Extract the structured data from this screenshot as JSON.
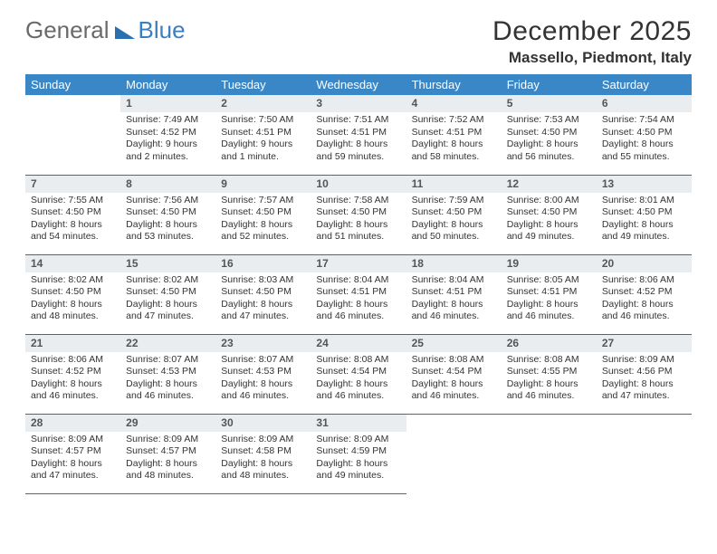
{
  "logo": {
    "text1": "General",
    "text2": "Blue"
  },
  "title": "December 2025",
  "location": "Massello, Piedmont, Italy",
  "colors": {
    "header_bg": "#3a87c7",
    "header_text": "#ffffff",
    "daynum_bg": "#e9edf0",
    "rule": "#2b6fb0",
    "body_text": "#333333"
  },
  "weekdays": [
    "Sunday",
    "Monday",
    "Tuesday",
    "Wednesday",
    "Thursday",
    "Friday",
    "Saturday"
  ],
  "first_weekday_index": 1,
  "days": [
    {
      "n": 1,
      "sunrise": "7:49 AM",
      "sunset": "4:52 PM",
      "daylight": "9 hours and 2 minutes."
    },
    {
      "n": 2,
      "sunrise": "7:50 AM",
      "sunset": "4:51 PM",
      "daylight": "9 hours and 1 minute."
    },
    {
      "n": 3,
      "sunrise": "7:51 AM",
      "sunset": "4:51 PM",
      "daylight": "8 hours and 59 minutes."
    },
    {
      "n": 4,
      "sunrise": "7:52 AM",
      "sunset": "4:51 PM",
      "daylight": "8 hours and 58 minutes."
    },
    {
      "n": 5,
      "sunrise": "7:53 AM",
      "sunset": "4:50 PM",
      "daylight": "8 hours and 56 minutes."
    },
    {
      "n": 6,
      "sunrise": "7:54 AM",
      "sunset": "4:50 PM",
      "daylight": "8 hours and 55 minutes."
    },
    {
      "n": 7,
      "sunrise": "7:55 AM",
      "sunset": "4:50 PM",
      "daylight": "8 hours and 54 minutes."
    },
    {
      "n": 8,
      "sunrise": "7:56 AM",
      "sunset": "4:50 PM",
      "daylight": "8 hours and 53 minutes."
    },
    {
      "n": 9,
      "sunrise": "7:57 AM",
      "sunset": "4:50 PM",
      "daylight": "8 hours and 52 minutes."
    },
    {
      "n": 10,
      "sunrise": "7:58 AM",
      "sunset": "4:50 PM",
      "daylight": "8 hours and 51 minutes."
    },
    {
      "n": 11,
      "sunrise": "7:59 AM",
      "sunset": "4:50 PM",
      "daylight": "8 hours and 50 minutes."
    },
    {
      "n": 12,
      "sunrise": "8:00 AM",
      "sunset": "4:50 PM",
      "daylight": "8 hours and 49 minutes."
    },
    {
      "n": 13,
      "sunrise": "8:01 AM",
      "sunset": "4:50 PM",
      "daylight": "8 hours and 49 minutes."
    },
    {
      "n": 14,
      "sunrise": "8:02 AM",
      "sunset": "4:50 PM",
      "daylight": "8 hours and 48 minutes."
    },
    {
      "n": 15,
      "sunrise": "8:02 AM",
      "sunset": "4:50 PM",
      "daylight": "8 hours and 47 minutes."
    },
    {
      "n": 16,
      "sunrise": "8:03 AM",
      "sunset": "4:50 PM",
      "daylight": "8 hours and 47 minutes."
    },
    {
      "n": 17,
      "sunrise": "8:04 AM",
      "sunset": "4:51 PM",
      "daylight": "8 hours and 46 minutes."
    },
    {
      "n": 18,
      "sunrise": "8:04 AM",
      "sunset": "4:51 PM",
      "daylight": "8 hours and 46 minutes."
    },
    {
      "n": 19,
      "sunrise": "8:05 AM",
      "sunset": "4:51 PM",
      "daylight": "8 hours and 46 minutes."
    },
    {
      "n": 20,
      "sunrise": "8:06 AM",
      "sunset": "4:52 PM",
      "daylight": "8 hours and 46 minutes."
    },
    {
      "n": 21,
      "sunrise": "8:06 AM",
      "sunset": "4:52 PM",
      "daylight": "8 hours and 46 minutes."
    },
    {
      "n": 22,
      "sunrise": "8:07 AM",
      "sunset": "4:53 PM",
      "daylight": "8 hours and 46 minutes."
    },
    {
      "n": 23,
      "sunrise": "8:07 AM",
      "sunset": "4:53 PM",
      "daylight": "8 hours and 46 minutes."
    },
    {
      "n": 24,
      "sunrise": "8:08 AM",
      "sunset": "4:54 PM",
      "daylight": "8 hours and 46 minutes."
    },
    {
      "n": 25,
      "sunrise": "8:08 AM",
      "sunset": "4:54 PM",
      "daylight": "8 hours and 46 minutes."
    },
    {
      "n": 26,
      "sunrise": "8:08 AM",
      "sunset": "4:55 PM",
      "daylight": "8 hours and 46 minutes."
    },
    {
      "n": 27,
      "sunrise": "8:09 AM",
      "sunset": "4:56 PM",
      "daylight": "8 hours and 47 minutes."
    },
    {
      "n": 28,
      "sunrise": "8:09 AM",
      "sunset": "4:57 PM",
      "daylight": "8 hours and 47 minutes."
    },
    {
      "n": 29,
      "sunrise": "8:09 AM",
      "sunset": "4:57 PM",
      "daylight": "8 hours and 48 minutes."
    },
    {
      "n": 30,
      "sunrise": "8:09 AM",
      "sunset": "4:58 PM",
      "daylight": "8 hours and 48 minutes."
    },
    {
      "n": 31,
      "sunrise": "8:09 AM",
      "sunset": "4:59 PM",
      "daylight": "8 hours and 49 minutes."
    }
  ],
  "labels": {
    "sunrise": "Sunrise:",
    "sunset": "Sunset:",
    "daylight": "Daylight:"
  }
}
